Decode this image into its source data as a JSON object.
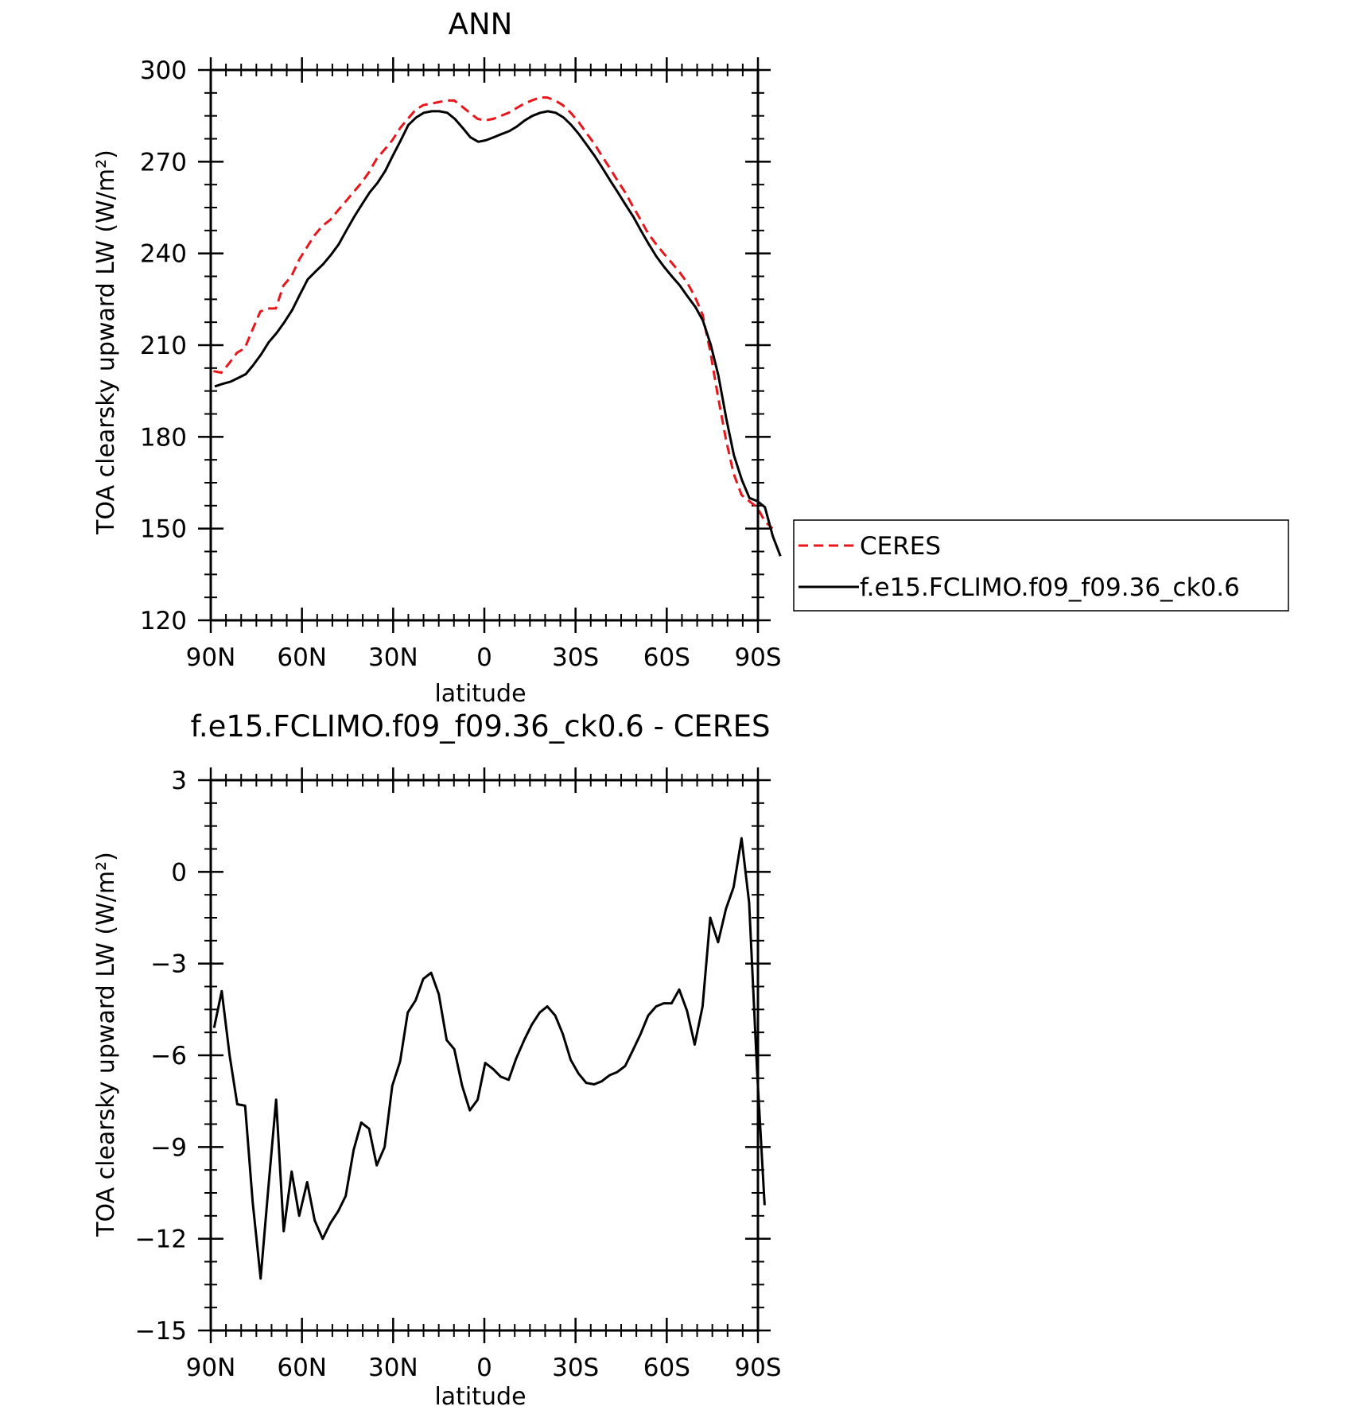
{
  "chart_data": [
    {
      "type": "line",
      "title": "ANN",
      "xlabel": "latitude",
      "ylabel": "TOA clearsky upward LW (W/m²)",
      "xlim": [
        90,
        -90
      ],
      "ylim": [
        120,
        300
      ],
      "x_ticks": [
        {
          "value": 90,
          "label": "90N"
        },
        {
          "value": 60,
          "label": "60N"
        },
        {
          "value": 30,
          "label": "30N"
        },
        {
          "value": 0,
          "label": "0"
        },
        {
          "value": -30,
          "label": "30S"
        },
        {
          "value": -60,
          "label": "60S"
        },
        {
          "value": -90,
          "label": "90S"
        }
      ],
      "y_ticks": [
        {
          "value": 300,
          "label": "300"
        },
        {
          "value": 270,
          "label": "270"
        },
        {
          "value": 240,
          "label": "240"
        },
        {
          "value": 210,
          "label": "210"
        },
        {
          "value": 180,
          "label": "180"
        },
        {
          "value": 150,
          "label": "150"
        },
        {
          "value": 120,
          "label": "120"
        }
      ],
      "legend": "right",
      "series": [
        {
          "name": "CERES",
          "color": "#e8151b",
          "style": "dashed",
          "points": [
            [
              89.1,
              201.5
            ],
            [
              86.5,
              201
            ],
            [
              84,
              204
            ],
            [
              81.4,
              207.5
            ],
            [
              78.8,
              209
            ],
            [
              76.3,
              215
            ],
            [
              73.7,
              221
            ],
            [
              71.2,
              222
            ],
            [
              68.6,
              222
            ],
            [
              66.1,
              229.5
            ],
            [
              63.5,
              232.5
            ],
            [
              60.9,
              238
            ],
            [
              58.4,
              242
            ],
            [
              55.8,
              246
            ],
            [
              53.3,
              249
            ],
            [
              50.7,
              251
            ],
            [
              48.2,
              254
            ],
            [
              45.6,
              257
            ],
            [
              43.1,
              260
            ],
            [
              40.5,
              263
            ],
            [
              38,
              266.5
            ],
            [
              35.4,
              271
            ],
            [
              32.8,
              274
            ],
            [
              30.3,
              277
            ],
            [
              27.7,
              281
            ],
            [
              25.2,
              284
            ],
            [
              22.6,
              287
            ],
            [
              20.1,
              288.5
            ],
            [
              17.5,
              289
            ],
            [
              15,
              289.5
            ],
            [
              12.4,
              290
            ],
            [
              9.9,
              290
            ],
            [
              7.3,
              288
            ],
            [
              4.8,
              286
            ],
            [
              2.2,
              284
            ],
            [
              -0.3,
              283.5
            ],
            [
              -2.9,
              284
            ],
            [
              -5.4,
              285
            ],
            [
              -8,
              286
            ],
            [
              -10.5,
              287.5
            ],
            [
              -13.1,
              289
            ],
            [
              -15.6,
              290
            ],
            [
              -18.2,
              291
            ],
            [
              -20.7,
              291
            ],
            [
              -23.3,
              290
            ],
            [
              -25.8,
              288.5
            ],
            [
              -28.4,
              286
            ],
            [
              -31,
              283
            ],
            [
              -33.5,
              279.5
            ],
            [
              -36.1,
              276
            ],
            [
              -38.6,
              272
            ],
            [
              -41.2,
              268
            ],
            [
              -43.7,
              264
            ],
            [
              -46.3,
              260
            ],
            [
              -48.8,
              255.5
            ],
            [
              -51.4,
              251
            ],
            [
              -53.9,
              246.5
            ],
            [
              -56.5,
              243
            ],
            [
              -59,
              240
            ],
            [
              -61.6,
              237
            ],
            [
              -64.1,
              234
            ],
            [
              -66.7,
              230.5
            ],
            [
              -69.2,
              226
            ],
            [
              -71.8,
              220
            ],
            [
              -74.3,
              208
            ],
            [
              -76.9,
              193
            ],
            [
              -79.5,
              179
            ],
            [
              -82,
              168
            ],
            [
              -84.6,
              161
            ],
            [
              -87.1,
              159
            ],
            [
              -89.7,
              157
            ],
            [
              -92.2,
              152.5
            ],
            [
              -94.8,
              150
            ]
          ]
        },
        {
          "name": "f.e15.FCLIMO.f09_f09.36_ck0.6",
          "color": "#000000",
          "style": "solid",
          "points": [
            [
              88.7,
              196.5
            ],
            [
              86.2,
              197.3
            ],
            [
              83.6,
              198
            ],
            [
              81.1,
              199.2
            ],
            [
              78.5,
              200.5
            ],
            [
              76,
              203.5
            ],
            [
              73.4,
              207
            ],
            [
              70.9,
              211
            ],
            [
              68.3,
              214
            ],
            [
              65.8,
              217.5
            ],
            [
              63.2,
              221.5
            ],
            [
              60.7,
              226.5
            ],
            [
              58.1,
              231.5
            ],
            [
              55.6,
              234
            ],
            [
              53,
              236.5
            ],
            [
              50.5,
              239.5
            ],
            [
              47.9,
              243
            ],
            [
              45.4,
              247.5
            ],
            [
              42.8,
              252
            ],
            [
              40.3,
              256
            ],
            [
              37.7,
              260
            ],
            [
              35.2,
              263
            ],
            [
              32.6,
              267
            ],
            [
              30.1,
              272
            ],
            [
              27.5,
              277
            ],
            [
              25,
              282
            ],
            [
              22.4,
              284.5
            ],
            [
              19.9,
              286
            ],
            [
              17.3,
              286.5
            ],
            [
              14.8,
              286.5
            ],
            [
              12.2,
              286
            ],
            [
              9.7,
              284
            ],
            [
              7.1,
              281
            ],
            [
              4.6,
              278
            ],
            [
              2,
              276.5
            ],
            [
              -0.5,
              277
            ],
            [
              -3.1,
              278
            ],
            [
              -5.6,
              279
            ],
            [
              -8.2,
              280
            ],
            [
              -10.7,
              281.5
            ],
            [
              -13.3,
              283.5
            ],
            [
              -15.8,
              285
            ],
            [
              -18.4,
              286
            ],
            [
              -20.9,
              286.5
            ],
            [
              -23.5,
              286
            ],
            [
              -26,
              284.5
            ],
            [
              -28.6,
              282
            ],
            [
              -31.1,
              279
            ],
            [
              -33.7,
              275.5
            ],
            [
              -36.2,
              272
            ],
            [
              -38.8,
              268
            ],
            [
              -41.3,
              264
            ],
            [
              -43.9,
              260
            ],
            [
              -46.4,
              256
            ],
            [
              -49,
              252
            ],
            [
              -51.5,
              247.5
            ],
            [
              -54.1,
              243
            ],
            [
              -56.6,
              239
            ],
            [
              -59.2,
              235.5
            ],
            [
              -61.7,
              232.5
            ],
            [
              -64.3,
              229.5
            ],
            [
              -66.8,
              226
            ],
            [
              -69.4,
              222.5
            ],
            [
              -71.9,
              218
            ],
            [
              -74.5,
              210
            ],
            [
              -77,
              200
            ],
            [
              -79.6,
              186
            ],
            [
              -82.1,
              174
            ],
            [
              -84.7,
              166
            ],
            [
              -87.2,
              160
            ],
            [
              -89.8,
              159
            ],
            [
              -92.3,
              157
            ],
            [
              -94.9,
              147.5
            ],
            [
              -97.4,
              141
            ]
          ]
        }
      ]
    },
    {
      "type": "line",
      "title": "f.e15.FCLIMO.f09_f09.36_ck0.6 - CERES",
      "xlabel": "latitude",
      "ylabel": "TOA clearsky upward LW (W/m²)",
      "xlim": [
        90,
        -90
      ],
      "ylim": [
        -15,
        3
      ],
      "x_ticks": [
        {
          "value": 90,
          "label": "90N"
        },
        {
          "value": 60,
          "label": "60N"
        },
        {
          "value": 30,
          "label": "30N"
        },
        {
          "value": 0,
          "label": "0"
        },
        {
          "value": -30,
          "label": "30S"
        },
        {
          "value": -60,
          "label": "60S"
        },
        {
          "value": -90,
          "label": "90S"
        }
      ],
      "y_ticks": [
        {
          "value": 3,
          "label": "3"
        },
        {
          "value": 0,
          "label": "0"
        },
        {
          "value": -3,
          "label": "−3"
        },
        {
          "value": -6,
          "label": "−6"
        },
        {
          "value": -9,
          "label": "−9"
        },
        {
          "value": -12,
          "label": "−12"
        },
        {
          "value": -15,
          "label": "−15"
        }
      ],
      "series": [
        {
          "color": "#000000",
          "style": "solid",
          "points": [
            [
              88.9,
              -5.1
            ],
            [
              86.4,
              -3.9
            ],
            [
              83.8,
              -6
            ],
            [
              81.3,
              -7.6
            ],
            [
              78.7,
              -7.65
            ],
            [
              76.2,
              -10.8
            ],
            [
              73.6,
              -13.3
            ],
            [
              71.1,
              -10.4
            ],
            [
              68.5,
              -7.45
            ],
            [
              66,
              -11.75
            ],
            [
              63.4,
              -9.8
            ],
            [
              60.9,
              -11.25
            ],
            [
              58.3,
              -10.15
            ],
            [
              55.8,
              -11.4
            ],
            [
              53.2,
              -12
            ],
            [
              50.7,
              -11.5
            ],
            [
              48.1,
              -11.1
            ],
            [
              45.6,
              -10.6
            ],
            [
              43,
              -9.1
            ],
            [
              40.5,
              -8.2
            ],
            [
              37.9,
              -8.4
            ],
            [
              35.4,
              -9.6
            ],
            [
              32.8,
              -9
            ],
            [
              30.3,
              -7
            ],
            [
              27.7,
              -6.2
            ],
            [
              25.2,
              -4.6
            ],
            [
              22.6,
              -4.2
            ],
            [
              20.1,
              -3.5
            ],
            [
              17.5,
              -3.3
            ],
            [
              15,
              -4
            ],
            [
              12.4,
              -5.5
            ],
            [
              9.9,
              -5.8
            ],
            [
              7.3,
              -7
            ],
            [
              4.8,
              -7.8
            ],
            [
              2.2,
              -7.45
            ],
            [
              -0.3,
              -6.25
            ],
            [
              -2.9,
              -6.45
            ],
            [
              -5.4,
              -6.7
            ],
            [
              -8,
              -6.8
            ],
            [
              -10.5,
              -6.1
            ],
            [
              -13.1,
              -5.5
            ],
            [
              -15.6,
              -5
            ],
            [
              -18.2,
              -4.6
            ],
            [
              -20.7,
              -4.4
            ],
            [
              -23.3,
              -4.7
            ],
            [
              -25.8,
              -5.3
            ],
            [
              -28.4,
              -6.15
            ],
            [
              -31,
              -6.6
            ],
            [
              -33.5,
              -6.9
            ],
            [
              -36.1,
              -6.95
            ],
            [
              -38.6,
              -6.85
            ],
            [
              -41.2,
              -6.65
            ],
            [
              -43.7,
              -6.55
            ],
            [
              -46.3,
              -6.35
            ],
            [
              -48.8,
              -5.85
            ],
            [
              -51.4,
              -5.3
            ],
            [
              -53.9,
              -4.7
            ],
            [
              -56.5,
              -4.4
            ],
            [
              -59,
              -4.3
            ],
            [
              -61.6,
              -4.3
            ],
            [
              -64.1,
              -3.85
            ],
            [
              -66.7,
              -4.55
            ],
            [
              -69.2,
              -5.65
            ],
            [
              -71.8,
              -4.4
            ],
            [
              -74.3,
              -1.5
            ],
            [
              -76.9,
              -2.3
            ],
            [
              -79.5,
              -1.2
            ],
            [
              -82,
              -0.5
            ],
            [
              -84.6,
              1.1
            ],
            [
              -87.1,
              -1
            ],
            [
              -89.7,
              -6.5
            ],
            [
              -92.2,
              -10.9
            ]
          ]
        }
      ]
    }
  ],
  "legend": {
    "items": [
      {
        "label": "CERES",
        "color": "#e8151b",
        "style": "dashed"
      },
      {
        "label": "f.e15.FCLIMO.f09_f09.36_ck0.6",
        "color": "#000000",
        "style": "solid"
      }
    ]
  }
}
